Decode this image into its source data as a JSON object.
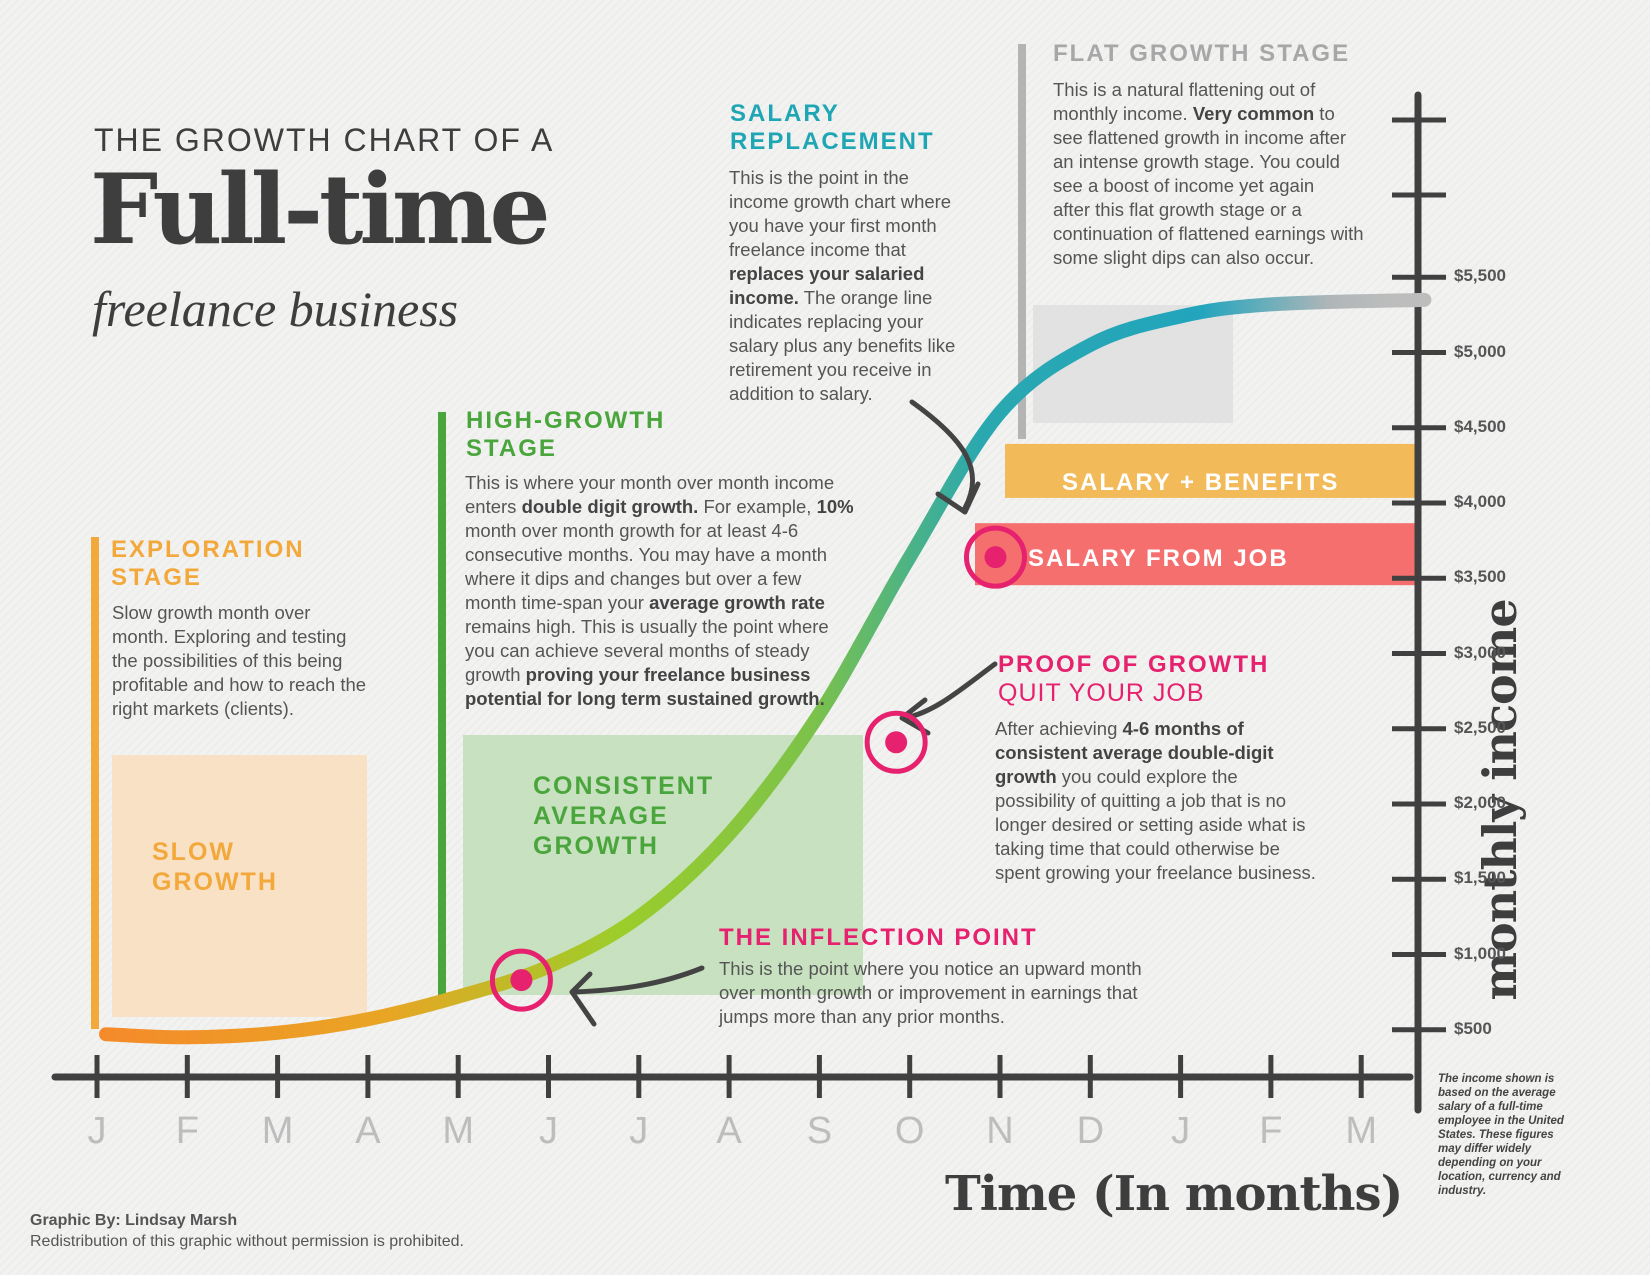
{
  "title": {
    "pre": "THE GROWTH CHART OF A",
    "main": "Full-time",
    "sub": "freelance business"
  },
  "colors": {
    "exploration": "#f3a83b",
    "high_growth": "#4aa63c",
    "salary_replacement": "#1fa6b5",
    "flat": "#a7a7a7",
    "pink": "#e6226f",
    "salary_band": "#f66f6f",
    "benefits_band": "#f2ba58"
  },
  "stages": {
    "exploration": {
      "heading": [
        "EXPLORATION",
        "STAGE"
      ],
      "lines": [
        "Slow growth month over",
        "month. Exploring and testing",
        "the possibilities of this being",
        "profitable and how to reach the",
        "right markets (clients)."
      ],
      "box_label": [
        "SLOW",
        "GROWTH"
      ]
    },
    "high_growth": {
      "heading": [
        "HIGH-GROWTH",
        "STAGE"
      ],
      "lines": [
        [
          {
            "t": "This is where your month over month income"
          }
        ],
        [
          {
            "t": "enters "
          },
          {
            "t": "double digit growth.",
            "b": true
          },
          {
            "t": " For example, "
          },
          {
            "t": "10%",
            "b": true
          }
        ],
        [
          {
            "t": "month over month growth for at least 4-6"
          }
        ],
        [
          {
            "t": "consecutive months. You may have a month"
          }
        ],
        [
          {
            "t": "where it dips and changes but over a few"
          }
        ],
        [
          {
            "t": "month time-span your "
          },
          {
            "t": "average growth rate",
            "b": true
          }
        ],
        [
          {
            "t": "remains high. This is usually the point where"
          }
        ],
        [
          {
            "t": "you can achieve several months of steady"
          }
        ],
        [
          {
            "t": "growth "
          },
          {
            "t": "proving your freelance business",
            "b": true
          }
        ],
        [
          {
            "t": "potential for long term sustained growth.",
            "b": true
          }
        ]
      ],
      "box_label": [
        "CONSISTENT",
        "AVERAGE",
        "GROWTH"
      ]
    },
    "salary_replacement": {
      "heading": [
        "SALARY",
        "REPLACEMENT"
      ],
      "lines": [
        [
          {
            "t": "This is the point in the"
          }
        ],
        [
          {
            "t": "income growth chart where"
          }
        ],
        [
          {
            "t": "you have your first month"
          }
        ],
        [
          {
            "t": "freelance income that"
          }
        ],
        [
          {
            "t": "replaces your salaried",
            "b": true
          }
        ],
        [
          {
            "t": "income.",
            "b": true
          },
          {
            "t": " The orange line"
          }
        ],
        [
          {
            "t": "indicates replacing your"
          }
        ],
        [
          {
            "t": "salary plus any benefits like"
          }
        ],
        [
          {
            "t": "retirement you receive in"
          }
        ],
        [
          {
            "t": "addition to salary."
          }
        ]
      ]
    },
    "flat": {
      "heading": "FLAT GROWTH STAGE",
      "lines": [
        [
          {
            "t": "This is a natural flattening out of"
          }
        ],
        [
          {
            "t": "monthly income. "
          },
          {
            "t": "Very common",
            "b": true
          },
          {
            "t": " to"
          }
        ],
        [
          {
            "t": "see flattened growth in income after"
          }
        ],
        [
          {
            "t": "an intense growth stage. You could"
          }
        ],
        [
          {
            "t": "see a boost of income yet again"
          }
        ],
        [
          {
            "t": "after this flat growth stage or a"
          }
        ],
        [
          {
            "t": "continuation of flattened earnings with"
          }
        ],
        [
          {
            "t": "some slight dips can also occur."
          }
        ]
      ]
    },
    "proof": {
      "heading": "PROOF OF GROWTH",
      "subheading": "QUIT YOUR JOB",
      "lines": [
        [
          {
            "t": "After achieving "
          },
          {
            "t": "4-6 months of",
            "b": true
          }
        ],
        [
          {
            "t": "consistent average double-digit",
            "b": true
          }
        ],
        [
          {
            "t": "growth",
            "b": true
          },
          {
            "t": " you could explore the"
          }
        ],
        [
          {
            "t": "possibility of quitting a job that is no"
          }
        ],
        [
          {
            "t": "longer desired or setting aside what is"
          }
        ],
        [
          {
            "t": "taking time that could otherwise be"
          }
        ],
        [
          {
            "t": "spent growing your freelance business."
          }
        ]
      ]
    },
    "inflection": {
      "heading": "THE INFLECTION POINT",
      "lines": [
        [
          {
            "t": "This is the point where you notice an upward month"
          }
        ],
        [
          {
            "t": "over month growth or improvement in earnings that"
          }
        ],
        [
          {
            "t": "jumps more than any prior months."
          }
        ]
      ]
    }
  },
  "bands": {
    "benefits": {
      "label": "SALARY + BENEFITS",
      "value": 4200
    },
    "salary": {
      "label": "SALARY FROM JOB",
      "value": 3640
    }
  },
  "chart_data": {
    "type": "line",
    "title": "The Growth Chart of a Full-time Freelance Business",
    "xlabel": "Time (In months)",
    "ylabel": "monthly income",
    "x": [
      "J",
      "F",
      "M",
      "A",
      "M",
      "J",
      "J",
      "A",
      "S",
      "O",
      "N",
      "D",
      "J",
      "F",
      "M"
    ],
    "y_ticks": [
      500,
      1000,
      1500,
      2000,
      2500,
      3000,
      3500,
      4000,
      4500,
      5000,
      5500
    ],
    "y_tick_labels": [
      "$500",
      "$1,000",
      "$1,500",
      "$2,000",
      "$2,500",
      "$3,000",
      "$3,500",
      "$4,000",
      "$4,500",
      "$5,000",
      "$5,500"
    ],
    "ylim": [
      0,
      6600
    ],
    "series": [
      {
        "name": "Monthly income",
        "x_index": [
          0.1,
          1,
          2,
          3,
          4,
          5,
          6,
          7,
          8,
          9,
          10,
          11,
          12,
          13,
          14.7
        ],
        "values": [
          470,
          450,
          480,
          570,
          720,
          920,
          1250,
          1800,
          2600,
          3640,
          4600,
          5050,
          5240,
          5320,
          5350
        ]
      }
    ],
    "markers": [
      {
        "name": "THE INFLECTION POINT",
        "x_index": 4.7,
        "value": 830
      },
      {
        "name": "PROOF OF GROWTH",
        "x_index": 8.85,
        "value": 2410
      },
      {
        "name": "SALARY REPLACEMENT",
        "x_index": 9.95,
        "value": 3640
      }
    ]
  },
  "y_axis_title": "monthly income",
  "x_axis_title": "Time (In months)",
  "note": "The income shown is based on the average salary of a full-time employee in the United States. These figures may differ widely depending on your location, currency and industry.",
  "credit": {
    "by": "Graphic By: Lindsay Marsh",
    "rights": "Redistribution of this graphic without permission is prohibited."
  }
}
